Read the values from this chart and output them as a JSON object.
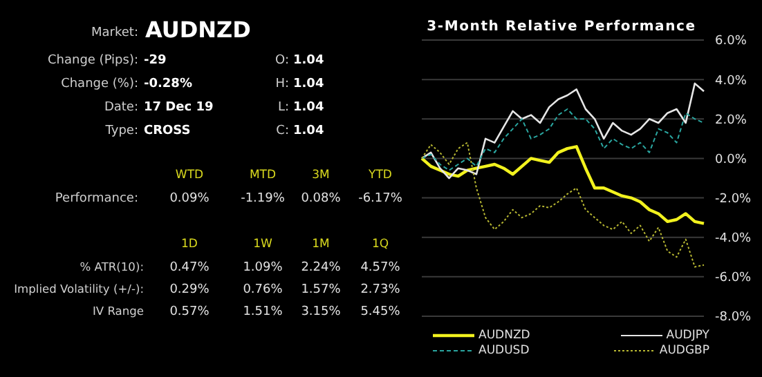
{
  "chart_data": [
    {
      "type": "other",
      "annotations": [
        "Market:",
        "AUDNZD",
        "Change (Pips):",
        "-29",
        "O:",
        "1.04",
        "Change (%):",
        "-0.28%",
        "H:",
        "1.04",
        "Date:",
        "17 Dec 19",
        "L:",
        "1.04",
        "Type:",
        "CROSS",
        "C:",
        "1.04",
        "WTD",
        "MTD",
        "3M",
        "YTD",
        "Performance:",
        "0.09%",
        "-1.19%",
        "0.08%",
        "-6.17%",
        "1D",
        "1W",
        "1M",
        "1Q",
        "% ATR(10):",
        "0.47%",
        "1.09%",
        "2.24%",
        "4.57%",
        "Implied Volatility (+/-):",
        "0.29%",
        "0.76%",
        "1.57%",
        "2.73%",
        "IV Range",
        "0.57%",
        "1.51%",
        "3.15%",
        "5.45%"
      ]
    },
    {
      "type": "line",
      "title": "3-Month Relative Performance",
      "categories": [
        null,
        null,
        null,
        null,
        null,
        null,
        null,
        null,
        null,
        null,
        null,
        null,
        null,
        null,
        null,
        null,
        null,
        null,
        null,
        null,
        null,
        null,
        null,
        null,
        null,
        null,
        null,
        null,
        null,
        null,
        null,
        null
      ],
      "series": [
        {
          "name": "AUDNZD",
          "color": "#f2f21e",
          "line_style": "solid",
          "values": [
            0,
            -0.4,
            -0.6,
            -0.8,
            -0.9,
            -0.6,
            -0.5,
            -0.4,
            -0.3,
            -0.5,
            -0.8,
            -0.4,
            0,
            -0.1,
            -0.2,
            0.3,
            0.5,
            0.6,
            -0.5,
            -1.5,
            -1.5,
            -1.7,
            -1.9,
            -2.0,
            -2.2,
            -2.6,
            -2.8,
            -3.2,
            -3.1,
            -2.8,
            -3.2,
            -3.3
          ]
        },
        {
          "name": "AUDJPY",
          "color": "#e6e6e6",
          "line_style": "solid",
          "values": [
            0,
            0.3,
            -0.5,
            -1.0,
            -0.5,
            -0.6,
            -0.8,
            1.0,
            0.8,
            1.6,
            2.4,
            2.0,
            2.2,
            1.8,
            2.6,
            3.0,
            3.2,
            3.5,
            2.5,
            2.0,
            1.0,
            1.8,
            1.4,
            1.2,
            1.5,
            2.0,
            1.8,
            2.3,
            2.5,
            1.8,
            3.8,
            3.4
          ]
        },
        {
          "name": "AUDUSD",
          "color": "#2aa6a0",
          "line_style": "dashed",
          "values": [
            0,
            0.2,
            -0.3,
            -0.6,
            -0.3,
            0,
            -0.4,
            0.5,
            0.3,
            1.0,
            1.5,
            2.0,
            1.0,
            1.2,
            1.5,
            2.2,
            2.5,
            2.0,
            2.0,
            1.5,
            0.5,
            1.0,
            0.7,
            0.5,
            0.8,
            0.3,
            1.5,
            1.3,
            0.8,
            2.3,
            2.0,
            1.8
          ]
        },
        {
          "name": "AUDGBP",
          "color": "#b8b832",
          "line_style": "dotted",
          "values": [
            0,
            0.7,
            0.3,
            -0.3,
            0.5,
            0.8,
            -1.5,
            -3.0,
            -3.6,
            -3.2,
            -2.6,
            -3.0,
            -2.8,
            -2.4,
            -2.5,
            -2.2,
            -1.8,
            -1.5,
            -2.6,
            -3.0,
            -3.4,
            -3.6,
            -3.2,
            -3.8,
            -3.4,
            -4.2,
            -3.5,
            -4.7,
            -5.0,
            -4.1,
            -5.5,
            -5.4
          ]
        }
      ],
      "ylim": [
        -8,
        6
      ],
      "yticks": [
        {
          "value": 6,
          "label": "6.0%"
        },
        {
          "value": 4,
          "label": "4.0%"
        },
        {
          "value": 2,
          "label": "2.0%"
        },
        {
          "value": 0,
          "label": "0.0%"
        },
        {
          "value": -2,
          "label": "-2.0%"
        },
        {
          "value": -4,
          "label": "-4.0%"
        },
        {
          "value": -6,
          "label": "-6.0%"
        },
        {
          "value": -8,
          "label": "-8.0%"
        }
      ],
      "grid": "y",
      "legend": "bottom",
      "marker": "none",
      "tick_labels": "y"
    }
  ]
}
